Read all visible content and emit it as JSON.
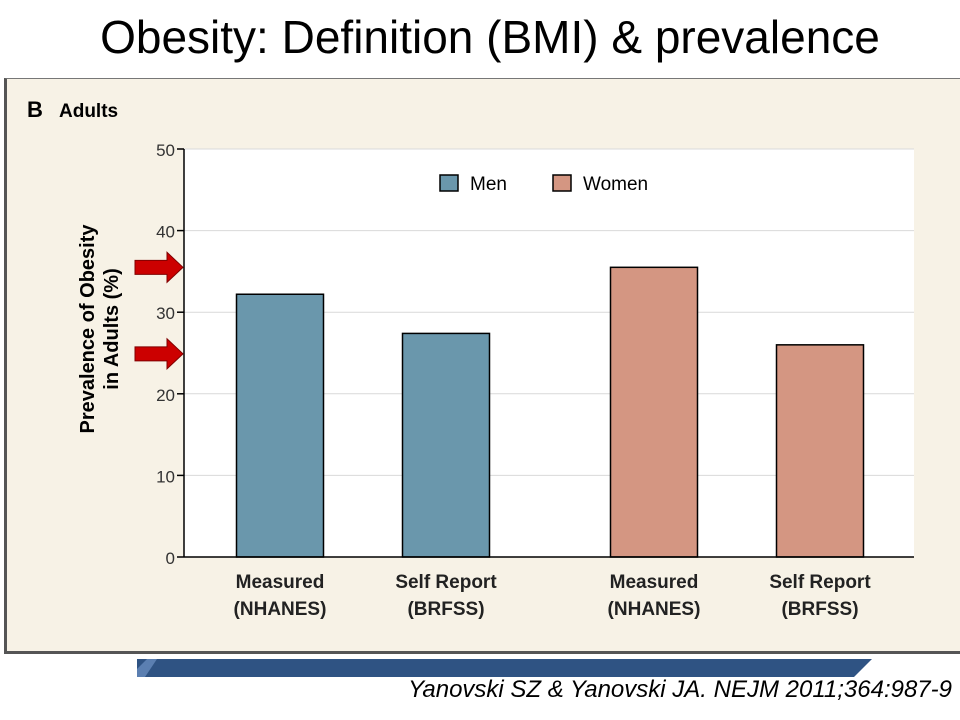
{
  "slide": {
    "title": "Obesity: Definition (BMI) & prevalence",
    "citation": "Yanovski SZ & Yanovski JA. NEJM 2011;364:987-9"
  },
  "chart_data": {
    "type": "bar",
    "panel_letter": "B",
    "panel_title": "Adults",
    "ylabel_lines": [
      "Prevalence of Obesity",
      "in Adults (%)"
    ],
    "ylim": [
      0,
      50
    ],
    "yticks": [
      0,
      10,
      20,
      30,
      40,
      50
    ],
    "grid": true,
    "legend_position": "top-center",
    "legend": [
      {
        "name": "Men",
        "color": "#6a97ac"
      },
      {
        "name": "Women",
        "color": "#d49682"
      }
    ],
    "bars": [
      {
        "group": "Men",
        "label_lines": [
          "Measured",
          "(NHANES)"
        ],
        "value": 32.2,
        "color": "#6a97ac"
      },
      {
        "group": "Men",
        "label_lines": [
          "Self Report",
          "(BRFSS)"
        ],
        "value": 27.4,
        "color": "#6a97ac"
      },
      {
        "group": "Women",
        "label_lines": [
          "Measured",
          "(NHANES)"
        ],
        "value": 35.5,
        "color": "#d49682"
      },
      {
        "group": "Women",
        "label_lines": [
          "Self Report",
          "(BRFSS)"
        ],
        "value": 26.0,
        "color": "#d49682"
      }
    ],
    "annotations": [
      {
        "type": "arrow",
        "color": "#cc0000",
        "y_value": 35.5
      },
      {
        "type": "arrow",
        "color": "#cc0000",
        "y_value": 24.9
      }
    ]
  }
}
